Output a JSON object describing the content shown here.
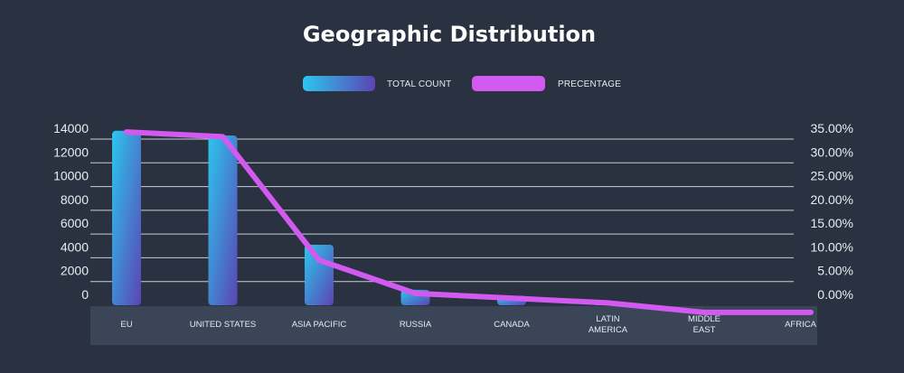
{
  "chart_data": {
    "type": "bar",
    "title": "Geographic Distribution",
    "categories": [
      [
        "EU"
      ],
      [
        "UNITED STATES"
      ],
      [
        "ASIA PACIFIC"
      ],
      [
        "RUSSIA"
      ],
      [
        "CANADA"
      ],
      [
        "LATIN",
        "AMERICA"
      ],
      [
        "MIDDLE",
        "EAST"
      ],
      [
        "AFRICA"
      ]
    ],
    "series": [
      {
        "name": "TOTAL COUNT",
        "type": "bar",
        "axis": "left",
        "values": [
          14700,
          14300,
          5100,
          1300,
          800,
          300,
          0,
          0
        ]
      },
      {
        "name": "PRECENTAGE",
        "type": "line",
        "axis": "right",
        "values": [
          36.5,
          35.5,
          9.5,
          2.5,
          1.5,
          0.5,
          -1.5,
          -1.5
        ]
      }
    ],
    "y_left": {
      "min": 0,
      "max": 14000,
      "step": 2000,
      "tick_labels": [
        "0",
        "2000",
        "4000",
        "6000",
        "8000",
        "10000",
        "12000",
        "14000"
      ]
    },
    "y_right": {
      "min": 0,
      "max": 35,
      "step": 5,
      "tick_labels": [
        "0.00%",
        "5.00%",
        "10.00%",
        "15.00%",
        "20.00%",
        "25.00%",
        "30.00%",
        "35.00%"
      ]
    },
    "grid": true,
    "legend_position": "top-center",
    "colors": {
      "background": "#2a3140",
      "bar_top": "#2cc6ee",
      "bar_bottom": "#5b44b4",
      "line": "#d35af0",
      "category_band": "#3a4658",
      "gridline": "#c9ced8"
    }
  }
}
